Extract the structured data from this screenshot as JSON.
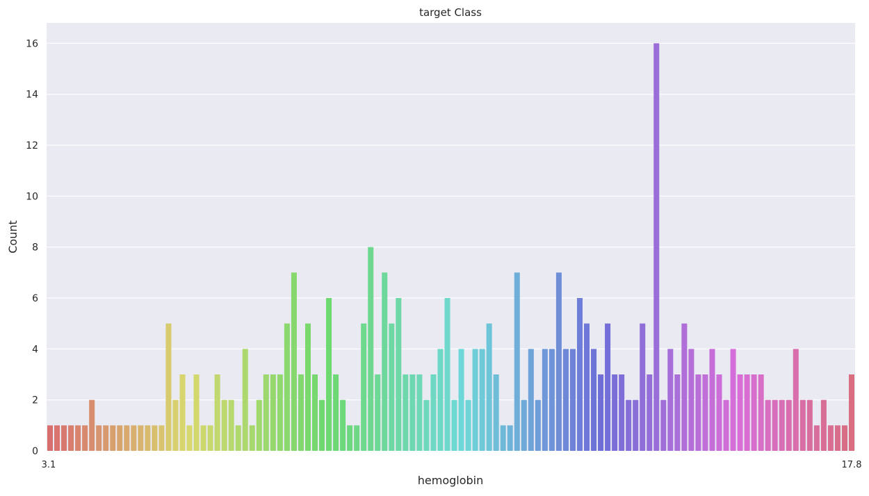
{
  "chart_data": {
    "type": "bar",
    "title": "target Class",
    "xlabel": "hemoglobin",
    "ylabel": "Count",
    "ylim": [
      0,
      16.8
    ],
    "yticks": [
      0,
      2,
      4,
      6,
      8,
      10,
      12,
      14,
      16
    ],
    "grid": true,
    "background": "#eaeaf2",
    "first_tick_label": "3.1",
    "last_tick_label": "17.8",
    "values": [
      1,
      1,
      1,
      1,
      1,
      1,
      2,
      1,
      1,
      1,
      1,
      1,
      1,
      1,
      1,
      1,
      1,
      5,
      2,
      3,
      1,
      3,
      1,
      1,
      3,
      2,
      2,
      1,
      4,
      1,
      2,
      3,
      3,
      3,
      5,
      7,
      3,
      5,
      3,
      2,
      6,
      3,
      2,
      1,
      1,
      5,
      8,
      3,
      7,
      5,
      6,
      3,
      3,
      3,
      2,
      3,
      4,
      6,
      2,
      4,
      2,
      4,
      4,
      5,
      3,
      1,
      1,
      7,
      2,
      4,
      2,
      4,
      4,
      7,
      4,
      4,
      6,
      5,
      4,
      3,
      5,
      3,
      3,
      2,
      2,
      5,
      3,
      16,
      2,
      4,
      3,
      5,
      4,
      3,
      3,
      4,
      3,
      2,
      4,
      3,
      3,
      3,
      3,
      2,
      2,
      2,
      2,
      4,
      2,
      2,
      1,
      2,
      1,
      1,
      1,
      3
    ],
    "palette_hue_start": 0,
    "palette_hue_end": 350
  }
}
